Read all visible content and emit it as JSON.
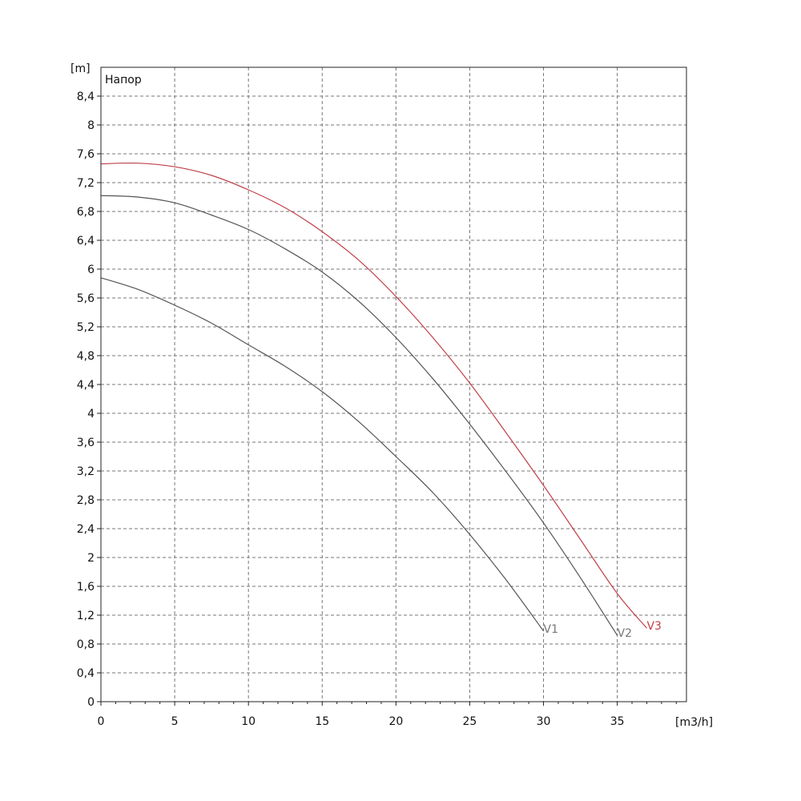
{
  "chart_data": {
    "type": "line",
    "title": "Напор",
    "xlabel": "[m3/h]",
    "ylabel": "[m]",
    "xlim": [
      0,
      40
    ],
    "ylim": [
      0,
      8.8
    ],
    "x_ticks": [
      "0",
      "5",
      "10",
      "15",
      "20",
      "25",
      "30",
      "35"
    ],
    "x_tick_values": [
      0,
      5,
      10,
      15,
      20,
      25,
      30,
      35
    ],
    "y_ticks": [
      "0",
      "0,4",
      "0,8",
      "1,2",
      "1,6",
      "2",
      "2,4",
      "2,8",
      "3,2",
      "3,6",
      "4",
      "4,4",
      "4,8",
      "5,2",
      "5,6",
      "6",
      "6,4",
      "6,8",
      "7,2",
      "7,6",
      "8",
      "8,4"
    ],
    "y_tick_values": [
      0,
      0.4,
      0.8,
      1.2,
      1.6,
      2,
      2.4,
      2.8,
      3.2,
      3.6,
      4,
      4.4,
      4.8,
      5.2,
      5.6,
      6,
      6.4,
      6.8,
      7.2,
      7.6,
      8,
      8.4
    ],
    "grid": true,
    "grid_style": "dashed",
    "series": [
      {
        "name": "V1",
        "color": "#555555",
        "x": [
          0,
          2.5,
          5,
          7.5,
          10,
          12.5,
          15,
          17.5,
          20,
          22.5,
          25,
          27.5,
          30
        ],
        "y": [
          5.88,
          5.72,
          5.5,
          5.25,
          4.95,
          4.65,
          4.3,
          3.88,
          3.4,
          2.9,
          2.32,
          1.68,
          0.98
        ]
      },
      {
        "name": "V2",
        "color": "#555555",
        "x": [
          0,
          2.5,
          5,
          7.5,
          10,
          12.5,
          15,
          17.5,
          20,
          22.5,
          25,
          27.5,
          30,
          32.5,
          35
        ],
        "y": [
          7.02,
          7.0,
          6.92,
          6.75,
          6.55,
          6.28,
          5.96,
          5.55,
          5.05,
          4.48,
          3.85,
          3.18,
          2.48,
          1.72,
          0.92
        ]
      },
      {
        "name": "V3",
        "color": "#c0404a",
        "x": [
          0,
          2.5,
          5,
          7.5,
          10,
          12.5,
          15,
          17.5,
          20,
          22.5,
          25,
          27.5,
          30,
          32.5,
          35,
          37
        ],
        "y": [
          7.46,
          7.47,
          7.42,
          7.3,
          7.1,
          6.85,
          6.52,
          6.12,
          5.62,
          5.05,
          4.42,
          3.72,
          3.0,
          2.25,
          1.5,
          1.02
        ]
      }
    ]
  }
}
